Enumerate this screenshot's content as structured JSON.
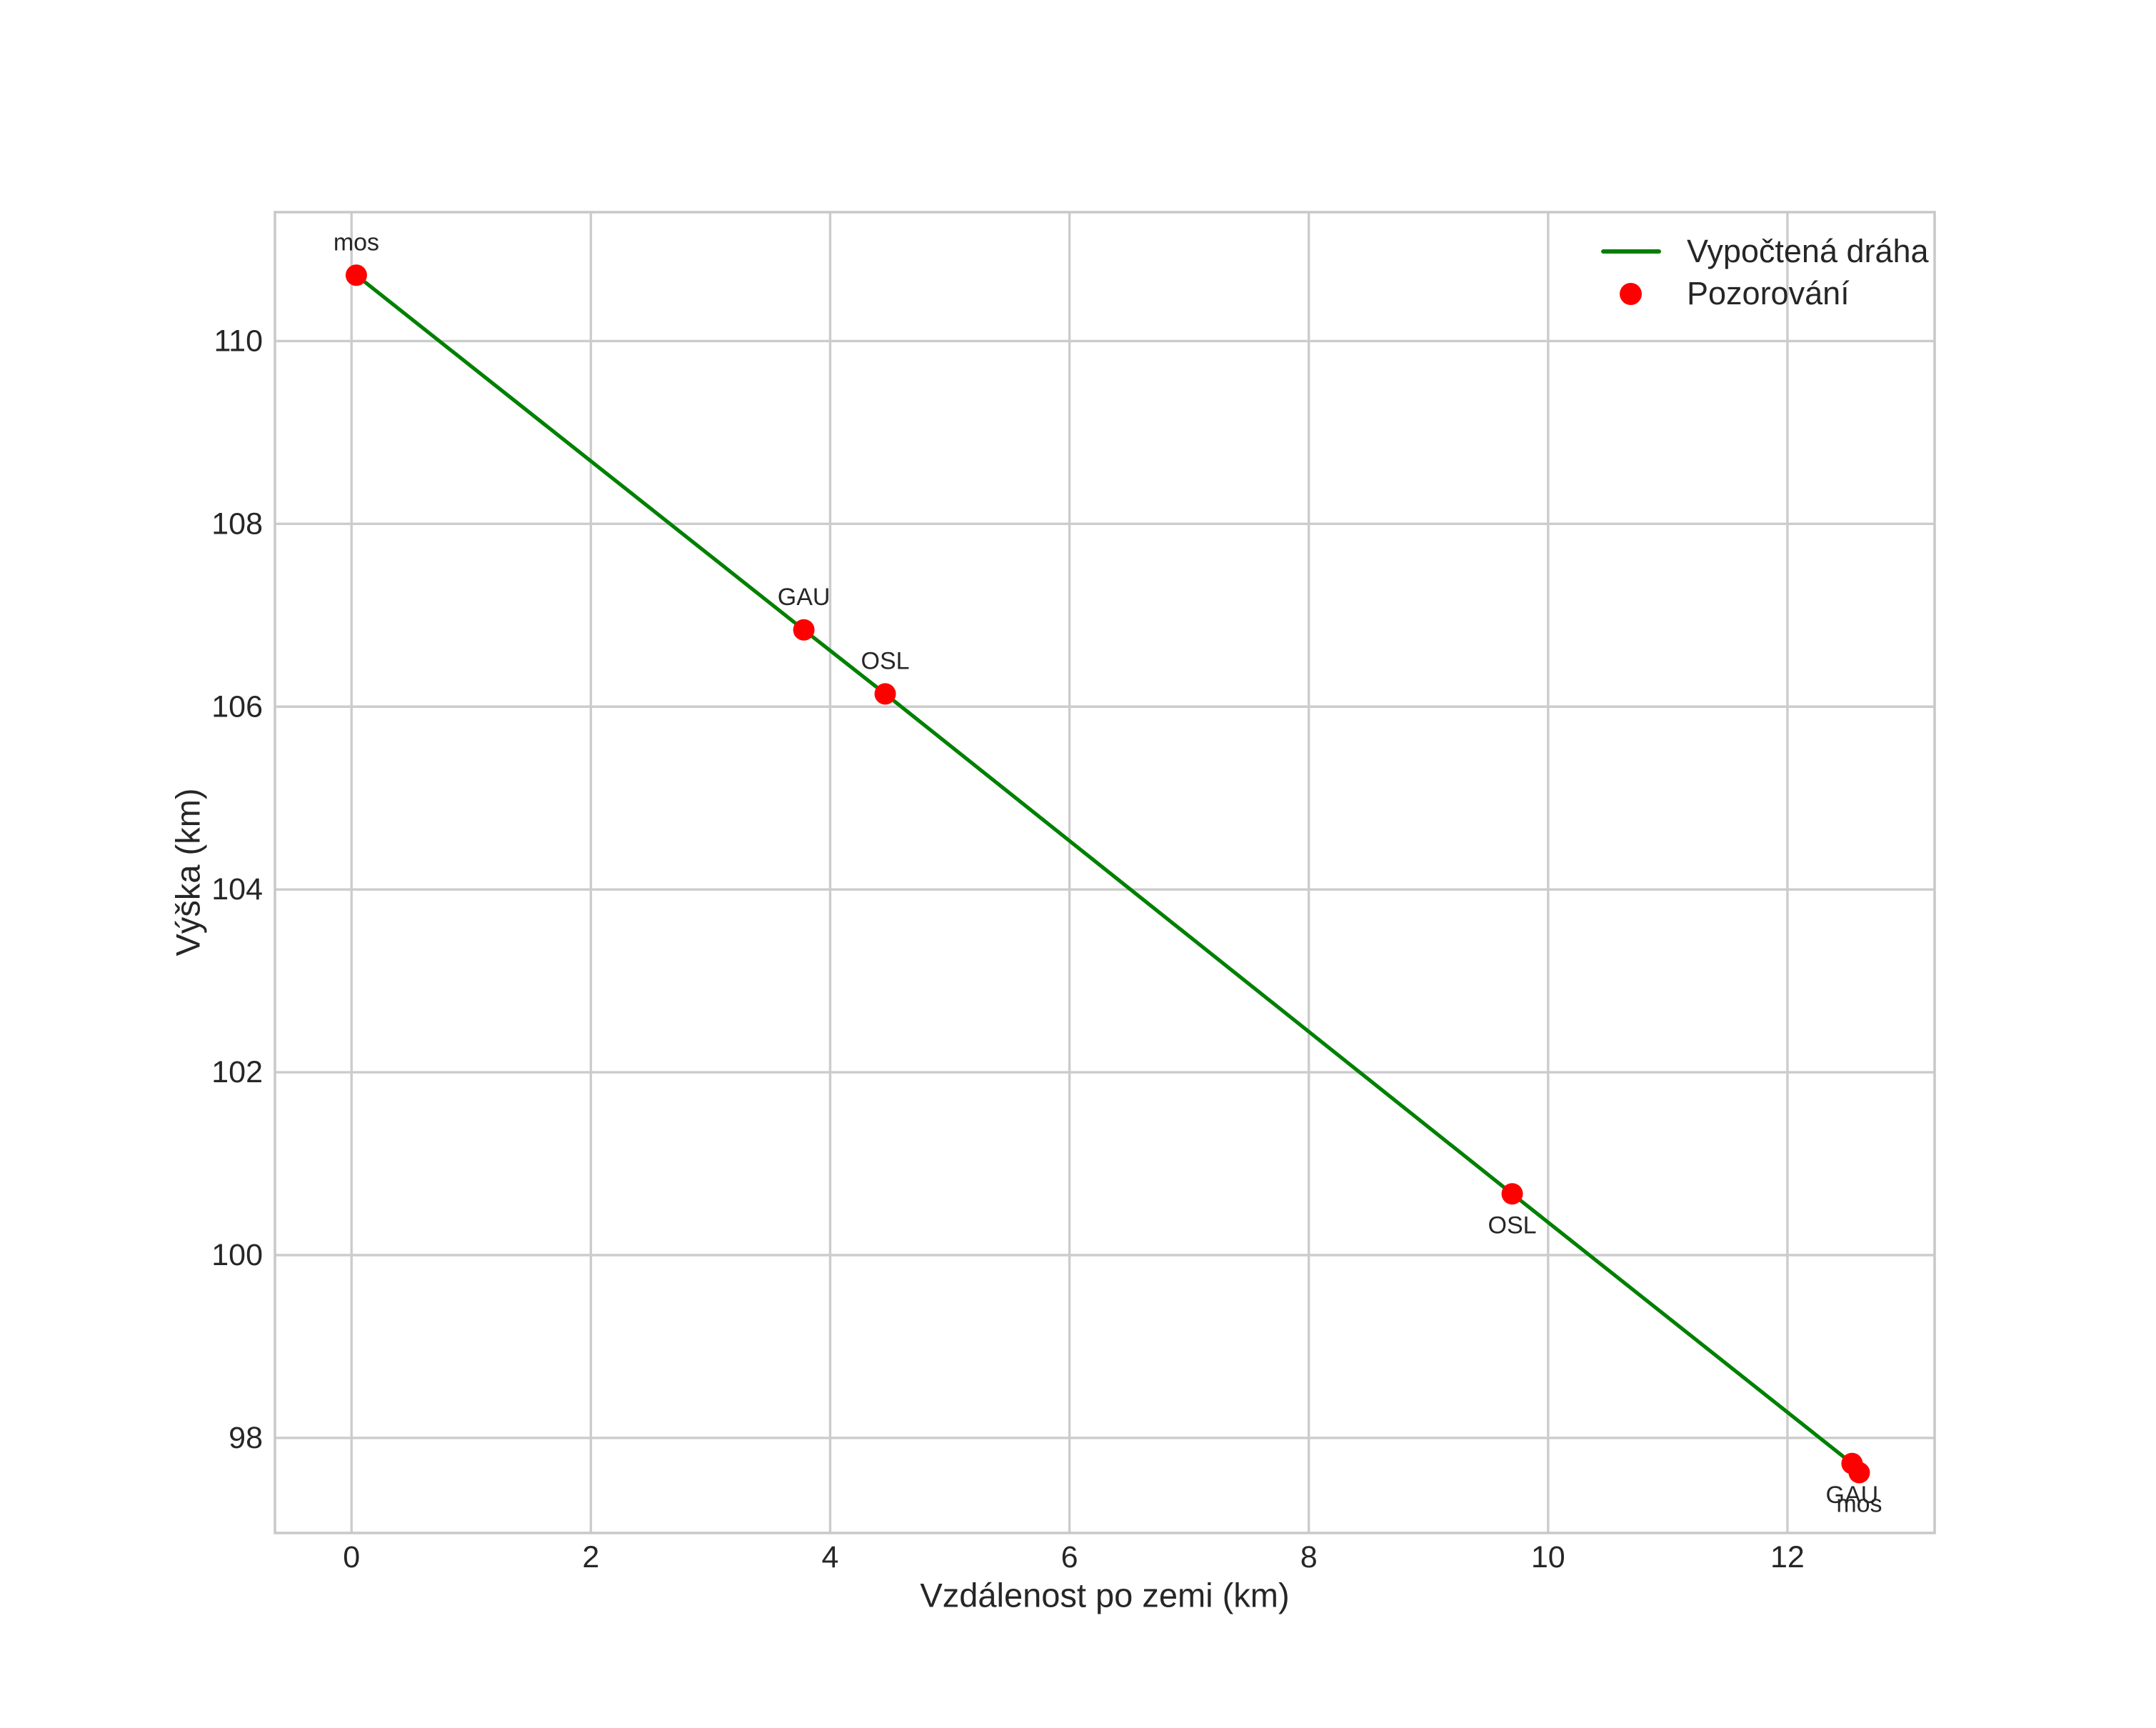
{
  "figure": {
    "xlabel": "Vzdálenost po zemi (km)",
    "ylabel": "Výška (km)",
    "legend": {
      "line_label": "Vypočtená dráha",
      "marker_label": "Pozorování"
    }
  },
  "colors": {
    "line": "#008000",
    "marker": "#ff0000",
    "grid": "#cccccc",
    "spine": "#c9c9c9",
    "text": "#262626"
  },
  "chart_data": {
    "type": "line",
    "title": "",
    "xlabel": "Vzdálenost po zemi (km)",
    "ylabel": "Výška (km)",
    "grid": true,
    "legend_position": "upper right",
    "xlim": [
      -0.64,
      13.23
    ],
    "ylim": [
      96.96,
      111.41
    ],
    "xticks": [
      0,
      2,
      4,
      6,
      8,
      10,
      12
    ],
    "yticks": [
      98,
      100,
      102,
      104,
      106,
      108,
      110
    ],
    "series": [
      {
        "name": "Vypočtená dráha",
        "type": "line",
        "color": "#008000",
        "x": [
          0.04,
          3.78,
          4.46,
          9.7,
          12.54,
          12.6
        ],
        "y": [
          110.72,
          106.84,
          106.14,
          100.67,
          97.72,
          97.62
        ]
      },
      {
        "name": "Pozorování",
        "type": "scatter",
        "color": "#ff0000",
        "points": [
          {
            "x": 0.04,
            "y": 110.72,
            "label": "mos",
            "label_side": "above"
          },
          {
            "x": 3.78,
            "y": 106.84,
            "label": "GAU",
            "label_side": "above"
          },
          {
            "x": 4.46,
            "y": 106.14,
            "label": "OSL",
            "label_side": "above"
          },
          {
            "x": 9.7,
            "y": 100.67,
            "label": "OSL",
            "label_side": "below"
          },
          {
            "x": 12.54,
            "y": 97.72,
            "label": "GAU",
            "label_side": "below"
          },
          {
            "x": 12.6,
            "y": 97.62,
            "label": "mos",
            "label_side": "below"
          }
        ]
      }
    ]
  }
}
